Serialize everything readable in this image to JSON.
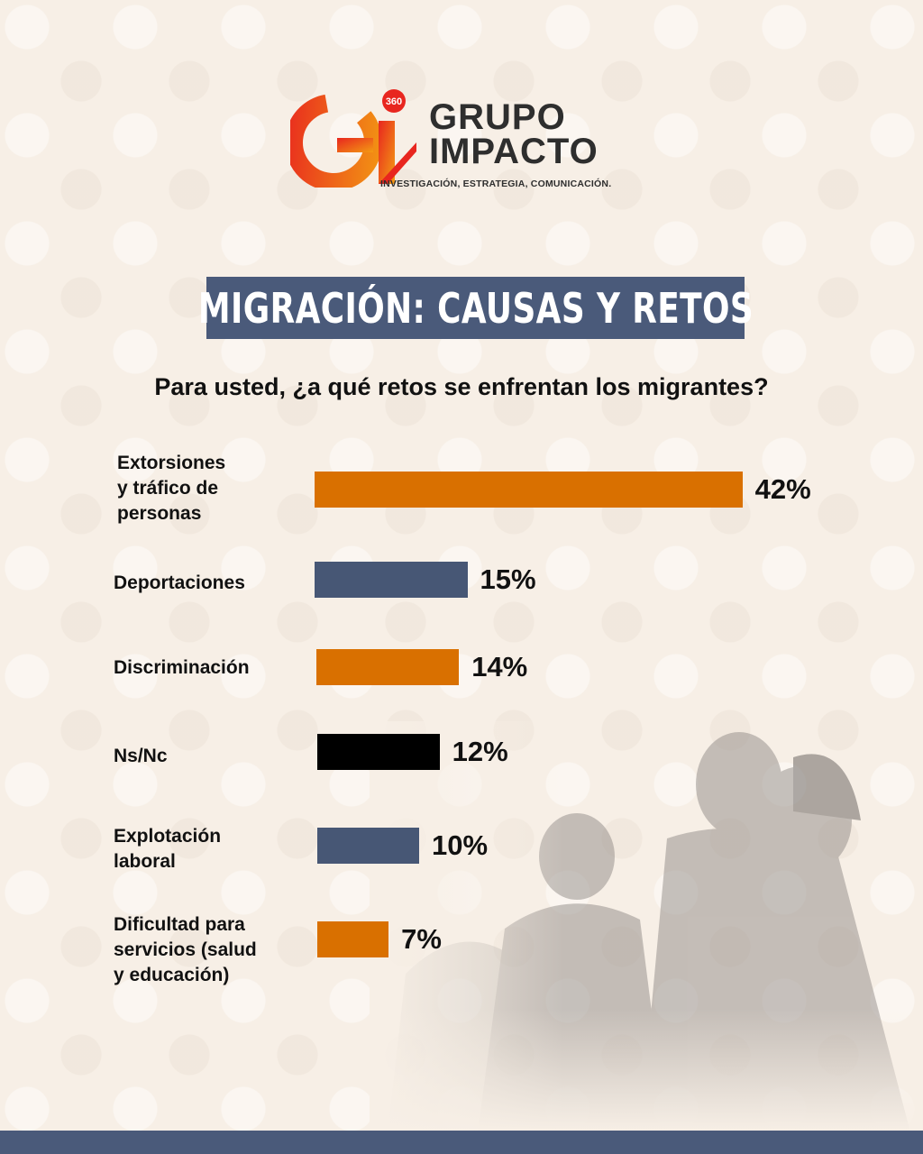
{
  "brand": {
    "name_line1": "GRUPO",
    "name_line2": "IMPACTO",
    "badge": "360",
    "monogram": "Gi",
    "tagline": "INVESTIGACIÓN, ESTRATEGIA, COMUNICACIÓN."
  },
  "header": {
    "title": "MIGRACIÓN: CAUSAS Y RETOS"
  },
  "colors": {
    "orange": "#d97000",
    "navy": "#475775",
    "black": "#000000"
  },
  "chart_data": {
    "type": "bar",
    "orientation": "horizontal",
    "title": "Para usted, ¿a qué retos se enfrentan los migrantes?",
    "categories": [
      "Extorsiones\ny tráfico de\npersonas",
      "Deportaciones",
      "Discriminación",
      "Ns/Nc",
      "Explotación\nlaboral",
      "Dificultad para\nservicios  (salud\ny educación)"
    ],
    "values": [
      42,
      15,
      14,
      12,
      10,
      7
    ],
    "value_labels": [
      "42%",
      "15%",
      "14%",
      "12%",
      "10%",
      "7%"
    ],
    "bar_colors": [
      "orange",
      "navy",
      "orange",
      "black",
      "navy",
      "orange"
    ],
    "unit": "%",
    "grid": false,
    "legend": "none"
  }
}
